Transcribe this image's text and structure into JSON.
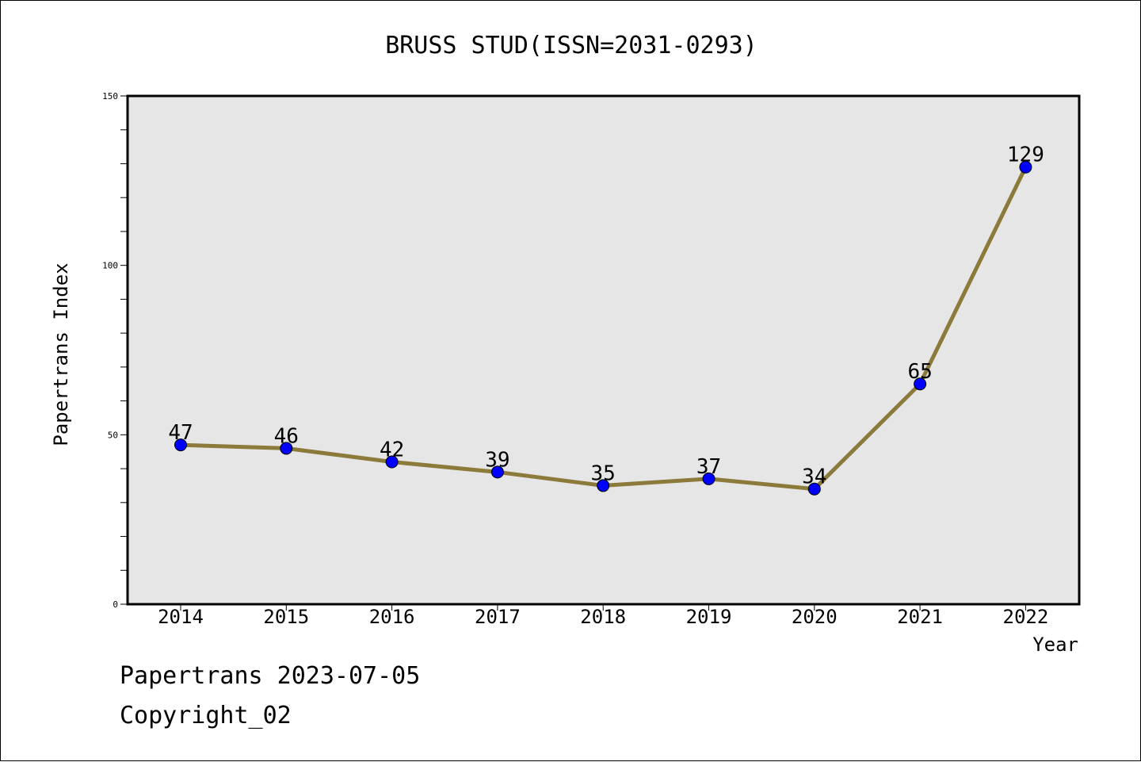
{
  "chart_data": {
    "type": "line",
    "title": "BRUSS STUD(ISSN=2031-0293)",
    "xlabel": "Year",
    "ylabel": "Papertrans Index",
    "categories": [
      "2014",
      "2015",
      "2016",
      "2017",
      "2018",
      "2019",
      "2020",
      "2021",
      "2022"
    ],
    "values": [
      47,
      46,
      42,
      39,
      35,
      37,
      34,
      65,
      129
    ],
    "ylim": [
      0,
      150
    ],
    "yticks": [
      0,
      50,
      100,
      150
    ],
    "grid": false,
    "plot_background": "#e6e6e6",
    "line_color": "#8b7a3a",
    "marker_color": "#0000ff"
  },
  "footer": {
    "line1": "Papertrans 2023-07-05",
    "line2": "Copyright_02"
  }
}
